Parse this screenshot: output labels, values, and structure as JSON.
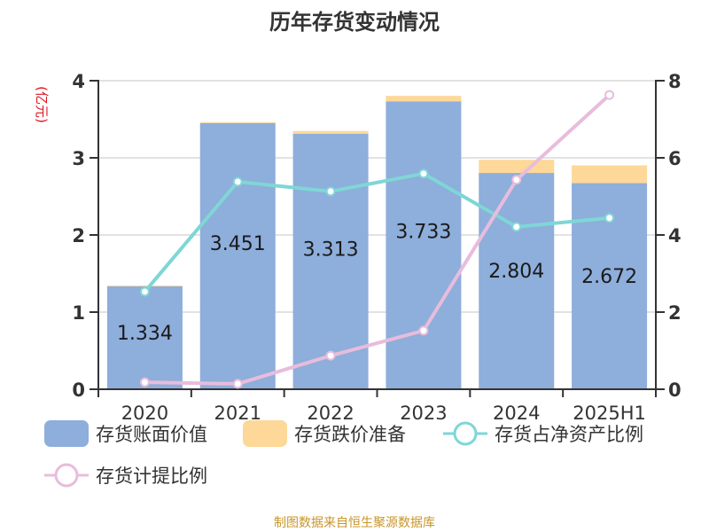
{
  "title": "历年存货变动情况",
  "y_unit_label": "(亿元)",
  "footer": "制图数据来自恒生聚源数据库",
  "colors": {
    "book_value": "#8eaedb",
    "reserve": "#fdd898",
    "net_asset_ratio": "#7fd6d6",
    "provision_ratio": "#e8bcdc",
    "axis": "#333333",
    "grid": "#d9d9d9",
    "unit_label": "#e0141e",
    "footer": "#c8962a"
  },
  "legend": [
    {
      "label": "存货账面价值",
      "type": "bar",
      "color_key": "book_value"
    },
    {
      "label": "存货跌价准备",
      "type": "bar",
      "color_key": "reserve"
    },
    {
      "label": "存货占净资产比例",
      "type": "line",
      "color_key": "net_asset_ratio"
    },
    {
      "label": "存货计提比例",
      "type": "line",
      "color_key": "provision_ratio"
    }
  ],
  "chart_data": {
    "type": "bar",
    "title": "历年存货变动情况",
    "xlabel": "",
    "ylabel": "(亿元)",
    "categories": [
      "2020",
      "2021",
      "2022",
      "2023",
      "2024",
      "2025H1"
    ],
    "ylim": [
      0,
      4
    ],
    "y_ticks": [
      0,
      1,
      2,
      3,
      4
    ],
    "y2lim": [
      0,
      8
    ],
    "y2_ticks": [
      0,
      2,
      4,
      6,
      8
    ],
    "grid": true,
    "legend_position": "bottom",
    "series": [
      {
        "name": "存货账面价值",
        "type": "bar",
        "stack": "inv",
        "axis": "left",
        "values": [
          1.334,
          3.451,
          3.313,
          3.733,
          2.804,
          2.672
        ],
        "show_labels": true
      },
      {
        "name": "存货跌价准备",
        "type": "bar",
        "stack": "inv",
        "axis": "left",
        "values": [
          0.01,
          0.012,
          0.035,
          0.07,
          0.17,
          0.23
        ],
        "show_labels": false
      },
      {
        "name": "存货占净资产比例",
        "type": "line",
        "axis": "right",
        "values": [
          2.53,
          5.38,
          5.13,
          5.59,
          4.21,
          4.44
        ]
      },
      {
        "name": "存货计提比例",
        "type": "line",
        "axis": "right",
        "values": [
          0.18,
          0.14,
          0.87,
          1.52,
          5.43,
          7.63
        ]
      }
    ]
  }
}
